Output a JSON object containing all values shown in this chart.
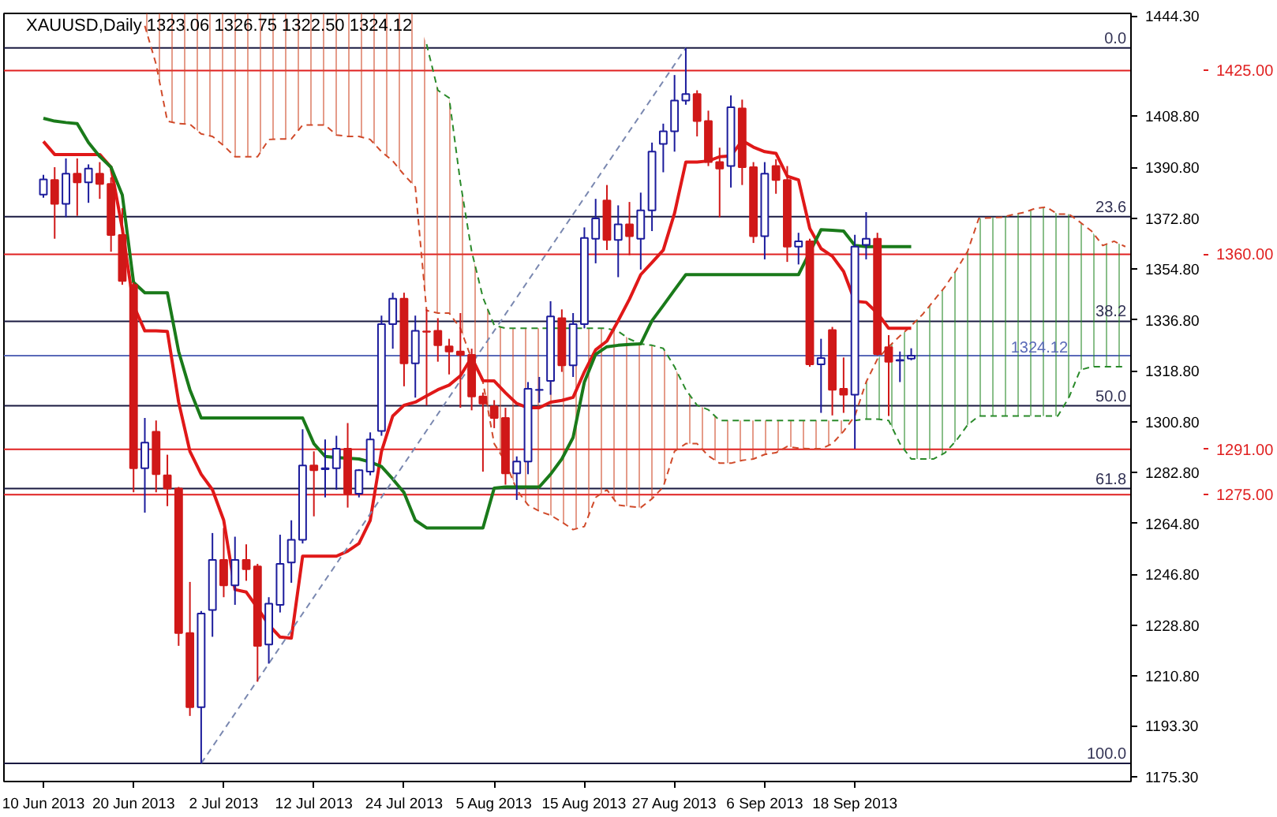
{
  "chart_data": {
    "type": "candlestick",
    "title": "XAUUSD,Daily  1323.06 1326.75 1322.50 1324.12",
    "categories": [
      "10 Jun 2013",
      null,
      null,
      null,
      null,
      null,
      null,
      null,
      "20 Jun 2013",
      null,
      null,
      null,
      null,
      null,
      null,
      null,
      "2 Jul 2013",
      null,
      null,
      null,
      null,
      null,
      null,
      null,
      "12 Jul 2013",
      null,
      null,
      null,
      null,
      null,
      null,
      null,
      "24 Jul 2013",
      null,
      null,
      null,
      null,
      null,
      null,
      null,
      "5 Aug 2013",
      null,
      null,
      null,
      null,
      null,
      null,
      null,
      "15 Aug 2013",
      null,
      null,
      null,
      null,
      null,
      null,
      null,
      "27 Aug 2013",
      null,
      null,
      null,
      null,
      null,
      null,
      null,
      "6 Sep 2013",
      null,
      null,
      null,
      null,
      null,
      null,
      null,
      "18 Sep 2013",
      null,
      null,
      null,
      null,
      null,
      null,
      null,
      null,
      null,
      null,
      null,
      null,
      null,
      null,
      null,
      null,
      null,
      null,
      null,
      null,
      null,
      null,
      null,
      null
    ],
    "ohlc": [
      [
        1381.1,
        1388.1,
        1380.0,
        1386.5
      ],
      [
        1386.3,
        1390.8,
        1365.5,
        1377.8
      ],
      [
        1377.8,
        1393.9,
        1373.1,
        1388.5
      ],
      [
        1388.5,
        1393.9,
        1373.6,
        1385.4
      ],
      [
        1385.4,
        1391.8,
        1378.2,
        1390.3
      ],
      [
        1388.5,
        1392.6,
        1379.6,
        1384.9
      ],
      [
        1384.9,
        1387.2,
        1360.9,
        1366.8
      ],
      [
        1366.8,
        1376.3,
        1349.2,
        1350.6
      ],
      [
        1349.2,
        1350.1,
        1275.8,
        1284.3
      ],
      [
        1284.3,
        1302.1,
        1268.6,
        1293.4
      ],
      [
        1297.2,
        1301.2,
        1275.8,
        1282.2
      ],
      [
        1281.8,
        1289.1,
        1270.9,
        1277.1
      ],
      [
        1277.1,
        1277.7,
        1221.5,
        1226.0
      ],
      [
        1226.0,
        1244.1,
        1196.7,
        1199.8
      ],
      [
        1199.8,
        1233.8,
        1179.9,
        1232.9
      ],
      [
        1234.2,
        1261.4,
        1224.7,
        1251.9
      ],
      [
        1251.9,
        1263.2,
        1238.7,
        1242.9
      ],
      [
        1242.9,
        1260.1,
        1236.0,
        1251.9
      ],
      [
        1251.9,
        1257.4,
        1244.5,
        1248.6
      ],
      [
        1249.6,
        1250.5,
        1208.8,
        1221.5
      ],
      [
        1222.0,
        1238.7,
        1215.2,
        1236.4
      ],
      [
        1236.0,
        1260.8,
        1233.3,
        1250.5
      ],
      [
        1251.0,
        1265.9,
        1243.8,
        1259.0
      ],
      [
        1259.0,
        1298.1,
        1257.7,
        1285.3
      ],
      [
        1285.3,
        1290.3,
        1267.3,
        1283.6
      ],
      [
        1284.0,
        1294.5,
        1274.0,
        1284.3
      ],
      [
        1284.3,
        1295.8,
        1276.7,
        1291.2
      ],
      [
        1291.2,
        1300.3,
        1270.4,
        1275.3
      ],
      [
        1275.3,
        1284.0,
        1274.0,
        1283.6
      ],
      [
        1283.1,
        1297.0,
        1281.8,
        1294.5
      ],
      [
        1297.5,
        1338.3,
        1295.8,
        1335.3
      ],
      [
        1335.3,
        1346.4,
        1326.6,
        1344.3
      ],
      [
        1344.3,
        1346.4,
        1313.3,
        1321.4
      ],
      [
        1321.4,
        1338.3,
        1309.3,
        1332.9
      ],
      [
        1332.7,
        1340.5,
        1306.6,
        1332.6
      ],
      [
        1332.9,
        1337.4,
        1322.0,
        1327.8
      ],
      [
        1327.4,
        1330.1,
        1317.5,
        1325.6
      ],
      [
        1325.6,
        1339.2,
        1305.7,
        1324.4
      ],
      [
        1324.4,
        1326.6,
        1304.8,
        1309.7
      ],
      [
        1309.7,
        1311.1,
        1283.1,
        1307.2
      ],
      [
        1306.2,
        1308.4,
        1298.5,
        1302.1
      ],
      [
        1302.1,
        1305.7,
        1278.5,
        1282.5
      ],
      [
        1282.5,
        1288.5,
        1273.1,
        1286.7
      ],
      [
        1286.7,
        1314.8,
        1282.2,
        1312.4
      ],
      [
        1312.0,
        1316.6,
        1307.5,
        1312.1
      ],
      [
        1315.2,
        1343.4,
        1310.3,
        1338.0
      ],
      [
        1337.4,
        1340.5,
        1318.4,
        1320.7
      ],
      [
        1320.7,
        1339.2,
        1316.6,
        1335.3
      ],
      [
        1335.3,
        1369.5,
        1333.8,
        1365.8
      ],
      [
        1365.5,
        1379.6,
        1356.8,
        1372.7
      ],
      [
        1379.0,
        1384.5,
        1361.5,
        1365.1
      ],
      [
        1365.1,
        1377.3,
        1351.9,
        1370.6
      ],
      [
        1370.6,
        1378.5,
        1359.7,
        1366.4
      ],
      [
        1365.5,
        1381.8,
        1354.6,
        1375.5
      ],
      [
        1375.5,
        1399.5,
        1368.2,
        1396.3
      ],
      [
        1399.0,
        1406.2,
        1389.0,
        1403.5
      ],
      [
        1403.5,
        1423.4,
        1396.3,
        1414.4
      ],
      [
        1414.4,
        1433.0,
        1412.9,
        1416.7
      ],
      [
        1416.7,
        1418.0,
        1401.7,
        1407.1
      ],
      [
        1407.1,
        1410.8,
        1391.2,
        1392.6
      ],
      [
        1392.6,
        1397.7,
        1373.1,
        1390.3
      ],
      [
        1391.2,
        1416.2,
        1383.6,
        1412.0
      ],
      [
        1411.6,
        1414.7,
        1384.5,
        1390.8
      ],
      [
        1390.8,
        1392.6,
        1364.0,
        1366.4
      ],
      [
        1366.4,
        1392.6,
        1358.2,
        1388.5
      ],
      [
        1391.2,
        1393.6,
        1381.4,
        1386.3
      ],
      [
        1386.3,
        1391.2,
        1357.3,
        1362.7
      ],
      [
        1362.7,
        1367.6,
        1356.4,
        1364.6
      ],
      [
        1364.6,
        1365.5,
        1320.2,
        1321.1
      ],
      [
        1321.1,
        1330.1,
        1303.9,
        1323.3
      ],
      [
        1333.2,
        1334.3,
        1303.0,
        1312.1
      ],
      [
        1312.4,
        1323.5,
        1303.9,
        1310.3
      ],
      [
        1310.3,
        1366.9,
        1291.2,
        1362.7
      ],
      [
        1363.3,
        1374.9,
        1358.2,
        1365.5
      ],
      [
        1365.5,
        1367.6,
        1324.2,
        1324.7
      ],
      [
        1327.1,
        1331.4,
        1302.8,
        1322.0
      ],
      [
        1322.4,
        1325.6,
        1314.8,
        1322.6
      ],
      [
        1323.06,
        1326.75,
        1322.5,
        1324.12
      ],
      null,
      null,
      null,
      null,
      null,
      null,
      null,
      null,
      null,
      null,
      null,
      null,
      null,
      null,
      null,
      null,
      null,
      null,
      null
    ],
    "colors": [
      "#1c1c9c",
      "#d01818",
      "#1c1c9c",
      "#d01818",
      "#1c1c9c",
      "#d01818",
      "#d01818",
      "#d01818",
      "#d01818",
      "#1c1c9c",
      "#d01818",
      "#d01818",
      "#d01818",
      "#d01818",
      "#1c1c9c",
      "#1c1c9c",
      "#d01818",
      "#1c1c9c",
      "#d01818",
      "#d01818",
      "#1c1c9c",
      "#1c1c9c",
      "#1c1c9c",
      "#1c1c9c",
      "#d01818",
      "#1c1c9c",
      "#1c1c9c",
      "#d01818",
      "#1c1c9c",
      "#1c1c9c",
      "#1c1c9c",
      "#1c1c9c",
      "#d01818",
      "#1c1c9c",
      "#d01818",
      "#d01818",
      "#d01818",
      "#d01818",
      "#d01818",
      "#d01818",
      "#d01818",
      "#d01818",
      "#1c1c9c",
      "#1c1c9c",
      "#1c1c9c",
      "#1c1c9c",
      "#d01818",
      "#1c1c9c",
      "#1c1c9c",
      "#1c1c9c",
      "#d01818",
      "#1c1c9c",
      "#d01818",
      "#1c1c9c",
      "#1c1c9c",
      "#1c1c9c",
      "#1c1c9c",
      "#1c1c9c",
      "#d01818",
      "#d01818",
      "#d01818",
      "#1c1c9c",
      "#d01818",
      "#d01818",
      "#1c1c9c",
      "#d01818",
      "#d01818",
      "#1c1c9c",
      "#d01818",
      "#1c1c9c",
      "#d01818",
      "#d01818",
      "#1c1c9c",
      "#1c1c9c",
      "#d01818",
      "#d01818",
      "#1c1c9c",
      "#1c1c9c",
      null,
      null,
      null,
      null,
      null,
      null,
      null,
      null,
      null,
      null,
      null,
      null,
      null,
      null,
      null,
      null,
      null,
      null,
      null
    ],
    "series": [
      {
        "type": "line",
        "color": "#d04a2a",
        "line_style": "dashed",
        "lower": [
          null,
          null,
          null,
          null,
          null,
          null,
          null,
          null,
          null,
          1440.8,
          1427.2,
          1407.1,
          1406.2,
          1406.0,
          1402.6,
          1401.7,
          1398.4,
          1394.5,
          1394.5,
          1394.5,
          1400.6,
          1400.8,
          1400.8,
          1405.7,
          1405.7,
          1405.7,
          1402.2,
          1401.7,
          1401.7,
          1400.6,
          1396.3,
          1393.0,
          1388.1,
          1383.8,
          1340.1,
          1339.2,
          1339.2,
          1333.8,
          1322.9,
          1314.8,
          1293.0,
          1286.5,
          1276.7,
          1271.3,
          1269.1,
          1267.7,
          1265.3,
          1262.6,
          1263.7,
          1274.0,
          1276.7,
          1271.3,
          1270.8,
          1270.4,
          1273.5,
          1277.7,
          1290.3,
          1293.0,
          1293.0,
          1288.7,
          1286.1,
          1286.1,
          1287.1,
          1287.6,
          1289.2,
          1289.8,
          1292.0,
          1291.4,
          1291.2,
          1291.2,
          1293.0,
          1297.4,
          null,
          null,
          null,
          null,
          null,
          null,
          null,
          null,
          null,
          null,
          null,
          null,
          null,
          null,
          null,
          null,
          null,
          null,
          null,
          null,
          null,
          null,
          null,
          null,
          null
        ],
        "upper": [
          null,
          null,
          null,
          null,
          null,
          null,
          null,
          null,
          null,
          1445.2,
          1445.2,
          1445.2,
          1445.2,
          1445.2,
          1445.2,
          1445.2,
          1445.2,
          1445.2,
          1445.2,
          1445.2,
          1445.2,
          1445.2,
          1445.2,
          1445.2,
          1445.2,
          1445.2,
          1445.2,
          1445.2,
          1445.2,
          1445.2,
          1445.2,
          1445.2,
          1445.2,
          1445.2,
          1434.3,
          1418.0,
          1415.3,
          1385.4,
          1361.0,
          1344.7,
          1334.9,
          1333.8,
          1333.8,
          1333.8,
          1333.8,
          1333.8,
          1333.8,
          1333.8,
          1333.8,
          1333.8,
          1333.8,
          1332.7,
          1330.0,
          1328.3,
          1327.8,
          1326.7,
          1320.2,
          1312.1,
          1306.6,
          1305.0,
          1301.2,
          1301.2,
          1301.2,
          1301.2,
          1301.2,
          1301.2,
          1301.2,
          1301.2,
          1301.2,
          1301.2,
          1301.2,
          1301.2,
          null,
          null,
          null,
          null,
          null,
          null,
          null,
          null,
          null,
          null,
          null,
          null,
          null,
          null,
          null,
          null,
          null,
          null,
          null,
          null,
          null,
          null,
          null,
          null,
          null
        ],
        "values": [
          null,
          null,
          null,
          null,
          null,
          null,
          null,
          null,
          null,
          1440.8,
          1427.2,
          1407.1,
          1406.2,
          1406.0,
          1402.6,
          1401.7,
          1398.4,
          1394.5,
          1394.5,
          1394.5,
          1400.6,
          1400.8,
          1400.8,
          1405.7,
          1405.7,
          1405.7,
          1402.2,
          1401.7,
          1401.7,
          1400.6,
          1396.3,
          1393.0,
          1388.1,
          1383.8,
          1340.1,
          1339.2,
          1339.2,
          1333.8,
          1322.9,
          1314.8,
          1293.0,
          1286.5,
          1276.7,
          1271.3,
          1269.1,
          1267.7,
          1265.3,
          1262.6,
          1263.7,
          1274.0,
          1276.7,
          1271.3,
          1270.8,
          1270.4,
          1273.5,
          1277.7,
          1290.3,
          1293.0,
          1293.0,
          1288.7,
          1286.1,
          1286.1,
          1287.1,
          1287.6,
          1289.2,
          1289.8,
          1292.0,
          1291.4,
          1291.2,
          1291.2,
          1293.0,
          1297.4,
          1302.8,
          1314.8,
          1322.9,
          1327.3,
          1331.1,
          1334.7,
          1338.7,
          1343.6,
          1348.5,
          1354.4,
          1361.0,
          1372.7,
          1372.9,
          1373.1,
          1374.0,
          1374.8,
          1376.2,
          1376.7,
          1374.2,
          1374.2,
          1371.3,
          1368.2,
          1363.1,
          1364.6,
          1362.7
        ]
      },
      {
        "type": "line",
        "color": "#2a8a2a",
        "line_style": "dashed",
        "lower": [
          null,
          null,
          null,
          null,
          null,
          null,
          null,
          null,
          null,
          null,
          null,
          null,
          null,
          null,
          null,
          null,
          null,
          null,
          null,
          null,
          null,
          null,
          null,
          null,
          null,
          null,
          null,
          null,
          null,
          null,
          null,
          null,
          null,
          null,
          null,
          null,
          null,
          null,
          null,
          null,
          null,
          null,
          null,
          null,
          null,
          null,
          null,
          null,
          null,
          null,
          null,
          null,
          null,
          null,
          null,
          null,
          null,
          null,
          null,
          null,
          null,
          null,
          null,
          null,
          null,
          null,
          null,
          null,
          null,
          null,
          null,
          null,
          1301.2,
          1301.7,
          1301.7,
          1301.2,
          1293.0,
          1287.6,
          1287.6,
          1287.6,
          1289.8,
          1294.1,
          1299.6,
          1302.8,
          1302.8,
          1302.8,
          1302.8,
          1302.8,
          1302.8,
          1302.8,
          1302.8,
          1309.4,
          1319.1,
          1320.2,
          1320.2,
          1320.2,
          1320.2
        ],
        "upper": [
          null,
          null,
          null,
          null,
          null,
          null,
          null,
          null,
          null,
          null,
          null,
          null,
          null,
          null,
          null,
          null,
          null,
          null,
          null,
          null,
          null,
          null,
          null,
          null,
          null,
          null,
          null,
          null,
          null,
          null,
          null,
          null,
          null,
          null,
          null,
          null,
          null,
          null,
          null,
          null,
          null,
          null,
          null,
          null,
          null,
          null,
          null,
          null,
          null,
          null,
          null,
          null,
          null,
          null,
          null,
          null,
          null,
          null,
          null,
          null,
          null,
          null,
          null,
          null,
          null,
          null,
          null,
          null,
          null,
          null,
          null,
          null,
          1302.8,
          1314.8,
          1322.9,
          1327.3,
          1331.1,
          1334.7,
          1338.7,
          1343.6,
          1348.5,
          1354.4,
          1361.0,
          1372.7,
          1372.9,
          1373.1,
          1374.0,
          1374.8,
          1376.2,
          1376.7,
          1374.2,
          1374.2,
          1371.3,
          1368.2,
          1363.1,
          1364.6,
          1362.7
        ],
        "values": [
          null,
          null,
          null,
          null,
          null,
          null,
          null,
          null,
          null,
          null,
          null,
          null,
          null,
          null,
          null,
          null,
          null,
          null,
          null,
          null,
          null,
          null,
          null,
          null,
          null,
          null,
          null,
          null,
          null,
          null,
          null,
          null,
          null,
          null,
          1434.3,
          1418.0,
          1415.3,
          1385.4,
          1361.0,
          1344.7,
          1334.9,
          1333.8,
          1333.8,
          1333.8,
          1333.8,
          null,
          null,
          null,
          1333.8,
          1333.8,
          1333.8,
          1332.7,
          1330.0,
          1328.3,
          1327.8,
          1326.7,
          1320.2,
          1312.1,
          1306.6,
          1305.0,
          1301.2,
          1301.2,
          1301.2,
          1301.2,
          1301.2,
          1301.2,
          1301.2,
          1301.2,
          1301.2,
          1301.2,
          1301.2,
          1301.2,
          1301.2,
          1301.7,
          1301.7,
          1301.2,
          1293.0,
          1287.6,
          1287.6,
          1287.6,
          1289.8,
          1294.1,
          1299.6,
          1302.8,
          1302.8,
          1302.8,
          1302.8,
          1302.8,
          1302.8,
          1302.8,
          1302.8,
          1309.4,
          1319.1,
          1320.2,
          1320.2,
          1320.2,
          1320.2
        ]
      },
      {
        "type": "line",
        "color": "#e01818",
        "line_style": "solid",
        "values": [
          1399.9,
          1395.3,
          1395.3,
          1395.3,
          1395.3,
          1395.3,
          1390.8,
          1369.1,
          1341.9,
          1332.9,
          1332.9,
          1332.7,
          1307.7,
          1290.3,
          1282.2,
          1276.7,
          1265.9,
          1241.4,
          1240.5,
          1234.9,
          1228.9,
          1224.6,
          1224.2,
          1253.2,
          1253.2,
          1253.2,
          1253.2,
          1255.0,
          1257.7,
          1265.9,
          1290.3,
          1302.8,
          1306.6,
          1307.7,
          1309.9,
          1312.1,
          1313.7,
          1317.0,
          1323.5,
          1315.3,
          1315.2,
          1311.0,
          1307.2,
          1305.7,
          1305.7,
          1307.7,
          1308.3,
          1309.4,
          1318.4,
          1326.2,
          1329.3,
          1336.5,
          1344.1,
          1352.8,
          1357.1,
          1361.5,
          1374.5,
          1392.6,
          1392.6,
          1393.0,
          1394.5,
          1394.8,
          1400.2,
          1397.9,
          1396.3,
          1395.7,
          1387.6,
          1386.3,
          1369.1,
          1362.0,
          1359.3,
          1353.9,
          1343.4,
          1343.0,
          1339.2,
          1333.8,
          1333.8,
          1333.8,
          null,
          null,
          null,
          null,
          null,
          null,
          null,
          null,
          null,
          null,
          null,
          null,
          null,
          null,
          null,
          null,
          null,
          null,
          null
        ]
      },
      {
        "type": "line",
        "color": "#1a7a1a",
        "line_style": "solid",
        "values": [
          1408.1,
          1407.1,
          1406.6,
          1406.2,
          1399.5,
          1394.6,
          1390.8,
          1381.0,
          1350.1,
          1346.4,
          1346.4,
          1346.4,
          1325.6,
          1312.1,
          1302.1,
          1302.1,
          1302.1,
          1302.1,
          1302.1,
          1302.1,
          1302.1,
          1302.1,
          1302.1,
          1302.1,
          1293.0,
          1288.5,
          1288.1,
          1287.9,
          1287.6,
          1286.5,
          1284.9,
          1280.5,
          1275.7,
          1265.9,
          1263.2,
          1263.2,
          1263.2,
          1263.2,
          1263.2,
          1263.2,
          1277.3,
          1277.7,
          1277.7,
          1277.7,
          1277.7,
          1282.2,
          1287.6,
          1295.2,
          1314.8,
          1324.6,
          1327.3,
          1327.8,
          1328.1,
          1328.3,
          1336.5,
          1341.9,
          1347.4,
          1352.8,
          1352.8,
          1352.8,
          1352.8,
          1352.8,
          1352.8,
          1352.8,
          1352.8,
          1352.8,
          1352.8,
          1352.8,
          null,
          1368.7,
          1368.5,
          1368.2,
          1363.1,
          1362.7,
          1362.7,
          1362.7,
          1362.7,
          1362.7,
          null,
          null,
          null,
          null,
          null,
          null,
          null,
          null,
          null,
          null,
          null,
          null,
          null,
          null,
          null,
          null,
          null,
          null,
          null
        ]
      },
      {
        "type": "line",
        "color": "#7a88b0",
        "line_style": "dashed",
        "values": [
          null,
          null,
          null,
          null,
          null,
          null,
          null,
          null,
          null,
          null,
          null,
          null,
          null,
          null,
          1179.9,
          null,
          null,
          null,
          null,
          null,
          null,
          null,
          null,
          null,
          null,
          null,
          null,
          null,
          null,
          null,
          null,
          null,
          null,
          null,
          null,
          null,
          null,
          null,
          null,
          null,
          null,
          null,
          null,
          null,
          null,
          null,
          null,
          null,
          null,
          null,
          null,
          null,
          null,
          null,
          null,
          null,
          null,
          1433.0,
          null,
          null,
          null,
          null,
          null,
          null,
          null,
          null,
          null,
          null,
          null,
          null,
          null,
          null,
          null,
          null,
          null,
          null,
          null,
          null,
          null,
          null,
          null,
          null,
          null,
          null,
          null,
          null,
          null,
          null,
          null,
          null,
          null,
          null,
          null,
          null,
          null,
          null,
          null
        ]
      }
    ],
    "ref_lines": [
      {
        "axis": "y",
        "value": 1433.0,
        "color": "#1a1a40"
      },
      {
        "axis": "y",
        "value": 1425,
        "label": "1425.00",
        "color": "#e02020"
      },
      {
        "axis": "y",
        "value": 1373.3,
        "color": "#1a1a40"
      },
      {
        "axis": "y",
        "value": 1360,
        "label": "1360.00",
        "color": "#e02020"
      },
      {
        "axis": "y",
        "value": 1336.3,
        "color": "#1a1a40"
      },
      {
        "axis": "y",
        "value": 1324.12,
        "label": "1324.12",
        "color": "#5a6ab8"
      },
      {
        "axis": "y",
        "value": 1306.4,
        "color": "#1a1a40"
      },
      {
        "axis": "y",
        "value": 1291,
        "label": "1291.00",
        "color": "#e02020"
      },
      {
        "axis": "y",
        "value": 1277.1,
        "color": "#1a1a40"
      },
      {
        "axis": "y",
        "value": 1275,
        "label": "1275.00",
        "color": "#e02020"
      },
      {
        "axis": "y",
        "value": 1179.9,
        "color": "#1a1a40"
      }
    ],
    "annotations": [
      {
        "text": "0.0",
        "y": 1433.0
      },
      {
        "text": "23.6",
        "y": 1373.3
      },
      {
        "text": "38.2",
        "y": 1336.3
      },
      {
        "text": "50.0",
        "y": 1306.4
      },
      {
        "text": "61.8",
        "y": 1277.1
      },
      {
        "text": "100.0",
        "y": 1179.9
      }
    ],
    "ylim": [
      1173.5,
      1445.2
    ],
    "yticks": [
      {
        "value": 1444.3,
        "label": "1444.30"
      },
      {
        "value": 1408.8,
        "label": "1408.80"
      },
      {
        "value": 1390.8,
        "label": "1390.80"
      },
      {
        "value": 1372.8,
        "label": "1372.80"
      },
      {
        "value": 1354.8,
        "label": "1354.80"
      },
      {
        "value": 1336.8,
        "label": "1336.80"
      },
      {
        "value": 1318.8,
        "label": "1318.80"
      },
      {
        "value": 1300.8,
        "label": "1300.80"
      },
      {
        "value": 1282.8,
        "label": "1282.80"
      },
      {
        "value": 1264.8,
        "label": "1264.80"
      },
      {
        "value": 1246.8,
        "label": "1246.80"
      },
      {
        "value": 1228.8,
        "label": "1228.80"
      },
      {
        "value": 1210.8,
        "label": "1210.80"
      },
      {
        "value": 1193.3,
        "label": "1193.30"
      },
      {
        "value": 1175.3,
        "label": "1175.30"
      }
    ],
    "grid": false
  }
}
